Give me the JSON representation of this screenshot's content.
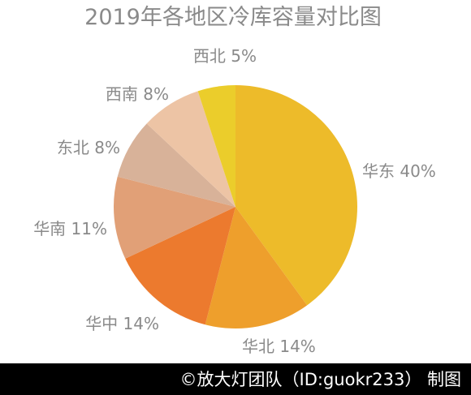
{
  "chart_data": {
    "type": "pie",
    "title": "2019年各地区冷库容量对比图",
    "categories": [
      "华东",
      "华北",
      "华中",
      "华南",
      "东北",
      "西南",
      "西北"
    ],
    "values": [
      40,
      14,
      14,
      11,
      8,
      8,
      5
    ],
    "unit": "%",
    "labels": [
      "华东 40%",
      "华北 14%",
      "华中 14%",
      "华南 11%",
      "东北 8%",
      "西南 8%",
      "西北 5%"
    ],
    "colors": [
      "#edbb2a",
      "#ee9f2c",
      "#ec7a2e",
      "#e1a077",
      "#d8b299",
      "#edc4a5",
      "#ebcd2b"
    ]
  },
  "footer": {
    "credit": "©放大灯团队（ID:guokr233） 制图"
  },
  "colors": {
    "text_gray": "#8a8a8a",
    "footer_bg": "#000000",
    "footer_text": "#ffffff"
  }
}
